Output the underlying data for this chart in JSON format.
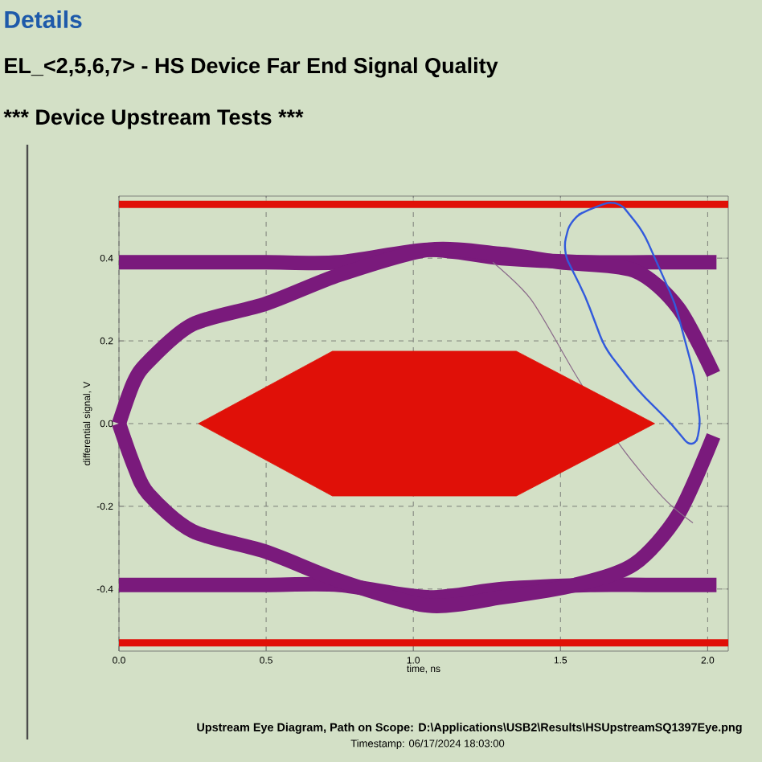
{
  "chart_data": {
    "type": "line",
    "title": "Details",
    "subtitle": "EL_<2,5,6,7> - HS Device Far End Signal Quality",
    "annotations": [
      "***",
      "Device Upstream Tests",
      "***",
      "Upstream Eye Diagram, Path on Scope: D:\\Applications\\USB2\\Results\\HSUpstreamSQ1397Eye.png",
      "Timestamp: 06/17/2024 18:03:00"
    ],
    "xlabel": "time, ns",
    "ylabel": "differential signal, V",
    "xlim": [
      0,
      2.07
    ],
    "ylim": [
      -0.55,
      0.55
    ],
    "xticks": [
      {
        "value": 0,
        "label": "0.0"
      },
      0.5,
      {
        "value": 1,
        "label": "1.0"
      },
      1.5,
      {
        "value": 2,
        "label": "2.0"
      }
    ],
    "yticks": [
      -0.4,
      -0.2,
      {
        "value": 0,
        "label": "0.0"
      },
      0.2,
      0.4
    ],
    "grid": true,
    "series": [
      {
        "color": "#7a1a7c",
        "x": [
          0,
          0.25,
          0.5,
          0.75,
          1.05,
          1.3,
          1.6,
          1.8,
          2.03
        ],
        "values": [
          0.39,
          0.39,
          0.39,
          0.39,
          0.42,
          0.4,
          0.39,
          0.39,
          0.39
        ]
      },
      {
        "color": "#7a1a7c",
        "x": [
          0,
          0.25,
          0.5,
          0.75,
          1.05,
          1.3,
          1.6,
          1.8,
          2.03
        ],
        "values": [
          -0.39,
          -0.39,
          -0.39,
          -0.39,
          -0.42,
          -0.4,
          -0.39,
          -0.39,
          -0.39
        ]
      },
      {
        "color": "#7a1a7c",
        "x": [
          0,
          0.05,
          0.1,
          0.25,
          0.5,
          0.75,
          1.05,
          1.3,
          1.5,
          1.75,
          1.9,
          2.02
        ],
        "values": [
          0.0,
          0.1,
          0.15,
          0.24,
          0.29,
          0.36,
          0.42,
          0.41,
          0.39,
          0.37,
          0.28,
          0.12
        ]
      },
      {
        "color": "#7a1a7c",
        "x": [
          0,
          0.05,
          0.1,
          0.25,
          0.5,
          0.75,
          1.05,
          1.3,
          1.55,
          1.75,
          1.9,
          2.02
        ],
        "values": [
          0.0,
          -0.1,
          -0.17,
          -0.26,
          -0.31,
          -0.38,
          -0.44,
          -0.42,
          -0.39,
          -0.34,
          -0.22,
          -0.03
        ]
      },
      {
        "color": "#8a6a8a",
        "x": [
          1.27,
          1.4,
          1.55,
          1.7,
          1.85,
          1.95
        ],
        "values": [
          0.39,
          0.3,
          0.12,
          -0.05,
          -0.18,
          -0.24
        ]
      },
      {
        "type": "area",
        "color": "#e01008",
        "x": [
          0.27,
          0.725,
          1.35,
          1.82,
          1.35,
          0.725
        ],
        "values": [
          0,
          0.175,
          0.175,
          0,
          -0.175,
          -0.175
        ]
      }
    ],
    "ref_lines": [
      {
        "axis": "y",
        "value": 0.53,
        "color": "#e01008"
      },
      {
        "axis": "y",
        "value": -0.53,
        "color": "#e01008"
      }
    ]
  }
}
